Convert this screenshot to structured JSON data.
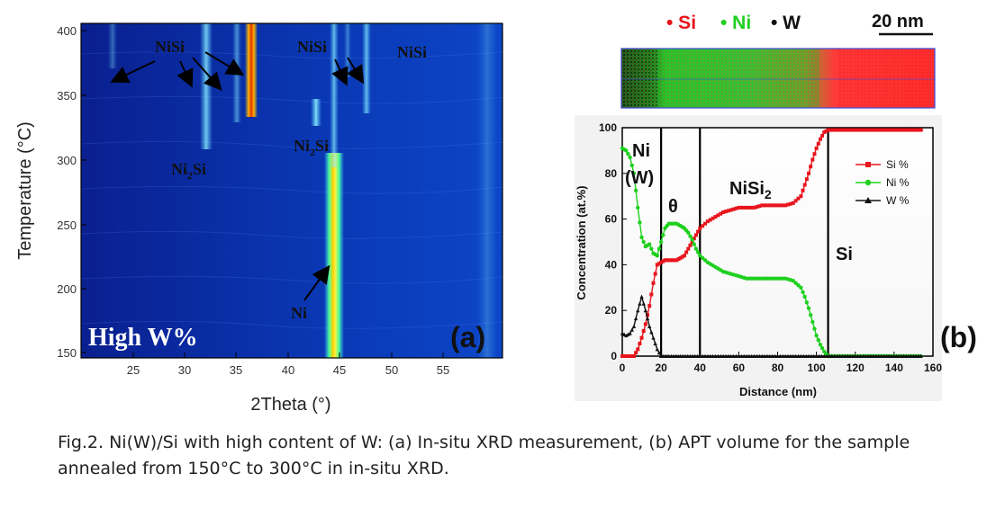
{
  "figure_a": {
    "panel_label": "(a)",
    "corner_text": "High W%",
    "xlabel": "2Theta (°)",
    "ylabel": "Temperature (°C)",
    "x_ticks": [
      "25",
      "30",
      "35",
      "40",
      "45",
      "50",
      "55"
    ],
    "y_ticks": [
      "150",
      "200",
      "250",
      "300",
      "350",
      "400"
    ],
    "annotations": [
      "NiSi",
      "NiSi",
      "NiSi",
      "Ni2Si",
      "Ni2Si",
      "Ni"
    ],
    "colors": {
      "background": "#0a2fa6",
      "peak_hot": "#ffea00",
      "peak_warm": "#ff6a00",
      "peak_cool": "#6fe3ff"
    }
  },
  "figure_b": {
    "panel_label": "(b)",
    "legend_top": {
      "si": "• Si",
      "ni": "• Ni",
      "w": "• W"
    },
    "scale_bar": "20 nm",
    "region_labels": {
      "ni_w_1": "Ni",
      "ni_w_2": "(W)",
      "theta": "θ",
      "nisi2": "NiSi2",
      "si": "Si"
    },
    "chart_data": {
      "type": "line",
      "xlabel": "Distance (nm)",
      "ylabel": "Concentration (at.%)",
      "xlim": [
        0,
        160
      ],
      "ylim": [
        0,
        100
      ],
      "x_ticks": [
        "0",
        "20",
        "40",
        "60",
        "80",
        "100",
        "120",
        "140",
        "160"
      ],
      "y_ticks": [
        "0",
        "20",
        "40",
        "60",
        "80",
        "100"
      ],
      "vertical_lines": [
        20,
        40,
        106
      ],
      "legend_placement": "top-right",
      "series": [
        {
          "name": "Si %",
          "color": "#e8141c",
          "x": [
            0,
            2,
            4,
            6,
            8,
            10,
            12,
            14,
            16,
            18,
            20,
            22,
            24,
            26,
            28,
            30,
            32,
            34,
            36,
            38,
            40,
            44,
            48,
            52,
            56,
            60,
            64,
            68,
            72,
            76,
            80,
            84,
            88,
            92,
            94,
            96,
            98,
            100,
            102,
            104,
            106,
            108,
            112,
            120,
            130,
            140,
            150,
            155
          ],
          "y": [
            0,
            0,
            0,
            0,
            3,
            8,
            14,
            22,
            32,
            40,
            41,
            42,
            42,
            42,
            42,
            43,
            44,
            47,
            50,
            53,
            56,
            59,
            61,
            63,
            64,
            65,
            65,
            65,
            66,
            66,
            66,
            66,
            67,
            70,
            75,
            80,
            86,
            91,
            95,
            98,
            99,
            99,
            99,
            99,
            99,
            99,
            99,
            99
          ]
        },
        {
          "name": "Ni %",
          "color": "#1ed01e",
          "x": [
            0,
            2,
            4,
            6,
            8,
            10,
            12,
            14,
            16,
            18,
            20,
            22,
            24,
            26,
            28,
            30,
            32,
            34,
            36,
            38,
            40,
            44,
            48,
            52,
            56,
            60,
            64,
            68,
            72,
            76,
            80,
            84,
            88,
            92,
            94,
            96,
            98,
            100,
            102,
            104,
            106,
            108,
            112,
            120,
            130,
            140,
            150,
            155
          ],
          "y": [
            91,
            90,
            87,
            80,
            65,
            52,
            48,
            49,
            45,
            44,
            50,
            56,
            58,
            58,
            58,
            57,
            56,
            54,
            51,
            47,
            44,
            41,
            39,
            37,
            36,
            35,
            34,
            34,
            34,
            34,
            34,
            34,
            33,
            30,
            26,
            21,
            15,
            9,
            5,
            2,
            0,
            0,
            0,
            0,
            0,
            0,
            0,
            0
          ]
        },
        {
          "name": "W %",
          "color": "#111111",
          "x": [
            0,
            2,
            4,
            6,
            8,
            10,
            12,
            14,
            16,
            18,
            20,
            22,
            24,
            30,
            40,
            60,
            80,
            100,
            120,
            140,
            155
          ],
          "y": [
            10,
            9,
            10,
            13,
            20,
            26,
            20,
            13,
            8,
            3,
            0,
            0,
            0,
            0,
            0,
            0,
            0,
            0,
            0,
            0,
            0
          ]
        }
      ]
    }
  },
  "caption": {
    "line1": "Fig.2. Ni(W)/Si with high content of W: (a) In-situ XRD measurement, (b) APT volume for the sample",
    "line2": "annealed from 150°C to 300°C in in-situ XRD."
  }
}
